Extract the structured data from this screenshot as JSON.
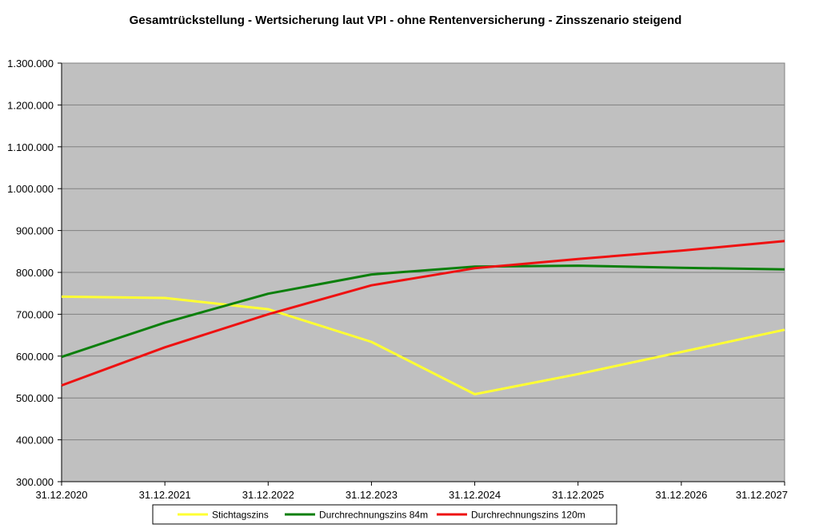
{
  "chart_data": {
    "type": "line",
    "title": "Gesamtrückstellung - Wertsicherung laut VPI - ohne Rentenversicherung - Zinsszenario steigend",
    "xlabel": "",
    "ylabel": "",
    "categories": [
      "31.12.2020",
      "31.12.2021",
      "31.12.2022",
      "31.12.2023",
      "31.12.2024",
      "31.12.2025",
      "31.12.2026",
      "31.12.2027"
    ],
    "ylim": [
      300000,
      1300000
    ],
    "ytick_step": 100000,
    "ytick_labels": [
      "300.000",
      "400.000",
      "500.000",
      "600.000",
      "700.000",
      "800.000",
      "900.000",
      "1.000.000",
      "1.100.000",
      "1.200.000",
      "1.300.000"
    ],
    "grid": "horizontal",
    "plot_background": "#c0c0c0",
    "legend_position": "bottom",
    "series": [
      {
        "name": "Stichtagszins",
        "color": "#ffff33",
        "values": [
          742000,
          739000,
          712000,
          634000,
          509000,
          557000,
          610000,
          663000
        ]
      },
      {
        "name": "Durchrechnungszins 84m",
        "color": "#0b7f0b",
        "values": [
          598000,
          680000,
          749000,
          795000,
          814000,
          816000,
          811000,
          807000
        ]
      },
      {
        "name": "Durchrechnungszins 120m",
        "color": "#ee1111",
        "values": [
          530000,
          621000,
          700000,
          769000,
          810000,
          832000,
          852000,
          875000
        ]
      }
    ]
  }
}
